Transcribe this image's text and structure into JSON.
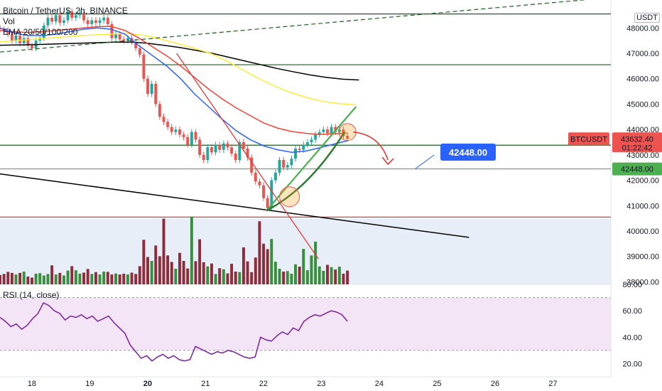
{
  "header": {
    "title": "Bitcoin / TetherUS, 2h, BINANCE",
    "vol_label": "Vol",
    "ema_label": "EMA 20/50/100/200",
    "rsi_label": "RSI (14, close)",
    "currency_badge": "USDT"
  },
  "price_labels": {
    "symbol": "BTCUSDT",
    "last_price": "43632.40",
    "countdown": "01:22:42",
    "support_price": "42448.00",
    "callout_price": "42448.00"
  },
  "colors": {
    "up": "#26a69a",
    "down": "#ef5350",
    "ema20": "#2962ff",
    "ema50": "#f44336",
    "ema100": "#ffeb3b",
    "ema200": "#000000",
    "volume_up": "#388e3c",
    "volume_down": "#8e2c3b",
    "rsi": "#7b1fa2",
    "rsi_band": "#f3e5f5",
    "volume_bg": "#e8eef7",
    "callout": "#2962ff"
  },
  "chart_data": {
    "type": "candlestick",
    "symbol": "BTCUSDT",
    "interval": "2h",
    "x_axis": {
      "labels": [
        "18",
        "19",
        "20",
        "21",
        "22",
        "23",
        "24",
        "25",
        "26",
        "27"
      ],
      "domain": [
        17.45,
        28.0
      ]
    },
    "price_axis": {
      "ticks": [
        38000,
        39000,
        40000,
        41000,
        42000,
        43000,
        44000,
        45000,
        46000,
        47000,
        48000
      ],
      "range": [
        37900,
        49100
      ]
    },
    "rsi_axis": {
      "ticks": [
        20,
        40,
        60,
        80
      ],
      "range": [
        10,
        80
      ]
    },
    "candles_close": [
      47950,
      47900,
      47750,
      47500,
      47700,
      47400,
      47600,
      47300,
      47200,
      47500,
      47600,
      48100,
      48400,
      48250,
      48500,
      48200,
      48300,
      48650,
      48400,
      48500,
      48600,
      48300,
      48150,
      48300,
      48200,
      48300,
      48400,
      48150,
      47600,
      47750,
      47550,
      47500,
      47600,
      47450,
      47200,
      46950,
      46000,
      45400,
      45800,
      45000,
      44500,
      44300,
      44100,
      43900,
      44000,
      43800,
      43700,
      43400,
      43900,
      43600,
      43000,
      42800,
      43300,
      43100,
      43400,
      43200,
      43450,
      43300,
      43050,
      42800,
      43500,
      43250,
      42900,
      42300,
      41950,
      41800,
      41300,
      40900,
      42000,
      42300,
      42800,
      42500,
      42600,
      42850,
      43250,
      43200,
      43400,
      43500,
      43600,
      43800,
      43900,
      44000,
      43850,
      44100,
      43900,
      44000,
      43750,
      43632.4
    ],
    "volume": [
      3.6,
      4.0,
      4.8,
      4.4,
      3.8,
      4.4,
      4.9,
      3.0,
      2.6,
      4.1,
      4.3,
      3.4,
      4.0,
      7.3,
      3.8,
      4.4,
      3.4,
      5.3,
      7.0,
      5.4,
      4.1,
      4.5,
      5.9,
      4.0,
      4.7,
      3.8,
      4.9,
      4.8,
      3.8,
      4.2,
      3.8,
      4.1,
      3.8,
      4.5,
      4.0,
      7.0,
      17.1,
      10.5,
      9.0,
      14.9,
      10.8,
      25.2,
      11.1,
      8.6,
      6.0,
      12.1,
      9.0,
      6.1,
      26.0,
      8.9,
      17.3,
      8.5,
      6.9,
      8.0,
      4.0,
      6.2,
      5.8,
      4.2,
      7.9,
      4.9,
      4.7,
      14.2,
      8.8,
      4.7,
      10.3,
      24.2,
      15.6,
      13.5,
      17.4,
      8.7,
      6.0,
      4.9,
      5.1,
      4.1,
      7.7,
      6.8,
      13.6,
      5.4,
      11.1,
      16.4,
      6.9,
      5.2,
      7.5,
      6.6,
      5.7,
      6.8,
      4.1,
      5.3
    ],
    "ema20": [
      48000,
      47800,
      47700,
      47700,
      47750,
      47850,
      47950,
      48000,
      47950,
      47750,
      47300,
      46900,
      46500,
      46000,
      45400,
      44900,
      44400,
      43950,
      43600,
      43350,
      43200,
      43100,
      43150,
      43280,
      43420,
      43560
    ],
    "ema50": [
      47900,
      47850,
      47820,
      47850,
      47900,
      47950,
      48000,
      48050,
      48060,
      47900,
      47600,
      47250,
      46900,
      46500,
      46050,
      45600,
      45200,
      44850,
      44550,
      44250,
      44050,
      43920,
      43850,
      43800,
      43830,
      43860
    ],
    "ema100": [
      47450,
      47500,
      47550,
      47600,
      47650,
      47700,
      47730,
      47760,
      47780,
      47700,
      47550,
      47380,
      47200,
      47000,
      46700,
      46350,
      46000,
      45700,
      45450,
      45250,
      45100,
      45020,
      44970
    ],
    "ema200": [
      47320,
      47330,
      47340,
      47360,
      47380,
      47400,
      47420,
      47440,
      47440,
      47400,
      47320,
      47230,
      47120,
      47000,
      46850,
      46700,
      46550,
      46400,
      46270,
      46150,
      46050,
      45980,
      45950
    ],
    "rsi": [
      55,
      52,
      48,
      50,
      46,
      49,
      54,
      58,
      66,
      64,
      60,
      58,
      53,
      56,
      55,
      57,
      54,
      56,
      52,
      54,
      56,
      51,
      47,
      43,
      34,
      29,
      24,
      26,
      22,
      25,
      27,
      24,
      26,
      23,
      22,
      23,
      33,
      31,
      29,
      27,
      29,
      28,
      30,
      29,
      27,
      25,
      24,
      25,
      40,
      38,
      37,
      41,
      44,
      42,
      47,
      45,
      52,
      55,
      57,
      56,
      58,
      60,
      59,
      57,
      52
    ],
    "horizontal_levels": [
      48550,
      46550,
      43380,
      42448,
      40550
    ],
    "price_badges": {
      "last_price": 43632.4,
      "support_level": 42448.0
    }
  }
}
